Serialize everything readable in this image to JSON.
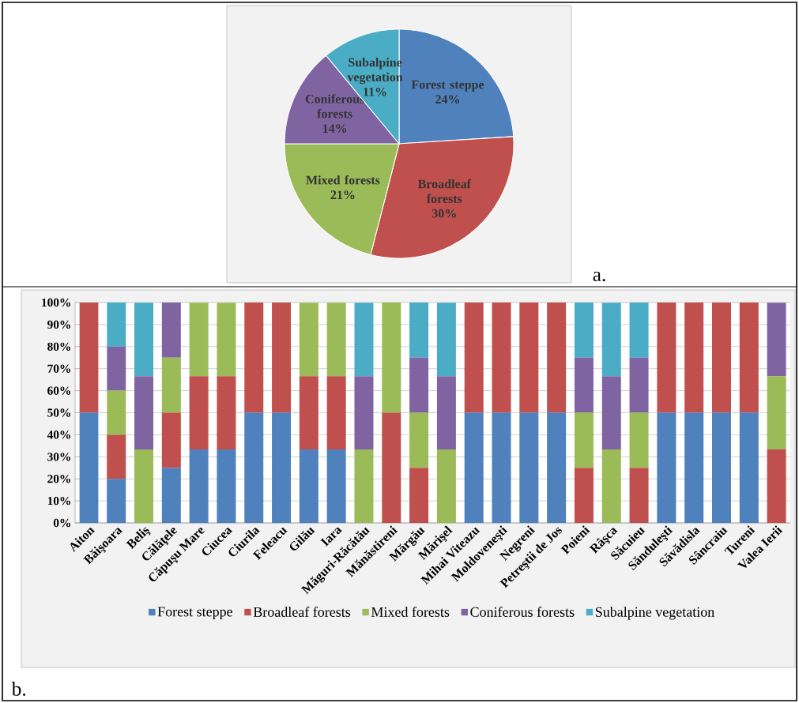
{
  "chart_data": [
    {
      "type": "pie",
      "categories": [
        "Forest steppe",
        "Broadleaf forests",
        "Mixed forests",
        "Coniferous forests",
        "Subalpine vegetation"
      ],
      "values": [
        24,
        30,
        21,
        14,
        11
      ],
      "colors": [
        "#4f81bd",
        "#c0504d",
        "#9bbb59",
        "#8064a2",
        "#4bacc6"
      ],
      "value_labels": [
        "24%",
        "30%",
        "21%",
        "14%",
        "11%"
      ],
      "annotations": [
        "a."
      ]
    },
    {
      "type": "bar",
      "stacked": true,
      "categories": [
        "Aiton",
        "Băişoara",
        "Beliş",
        "Călăţele",
        "Căpuşu Mare",
        "Ciucea",
        "Ciurila",
        "Feleacu",
        "Gilău",
        "Iara",
        "Măguri-Răcătău",
        "Mănăstireni",
        "Mărgău",
        "Mărişel",
        "Mihai Viteazu",
        "Moldoveneşti",
        "Negreni",
        "Petreştii de Jos",
        "Poieni",
        "Râşca",
        "Săcuieu",
        "Sănduleşti",
        "Săvădisla",
        "Sâncraiu",
        "Tureni",
        "Valea Ierii"
      ],
      "series": [
        {
          "name": "Forest steppe",
          "color": "#4f81bd",
          "values": [
            50,
            20,
            0,
            25,
            33.3,
            33.3,
            50,
            50,
            33.3,
            33.3,
            0,
            0,
            0,
            0,
            50,
            50,
            50,
            50,
            0,
            0,
            0,
            50,
            50,
            50,
            50,
            0
          ]
        },
        {
          "name": "Broadleaf forests",
          "color": "#c0504d",
          "values": [
            50,
            20,
            0,
            25,
            33.3,
            33.3,
            50,
            50,
            33.3,
            33.3,
            0,
            50,
            25,
            0,
            50,
            50,
            50,
            50,
            25,
            0,
            25,
            50,
            50,
            50,
            50,
            33.3
          ]
        },
        {
          "name": "Mixed forests",
          "color": "#9bbb59",
          "values": [
            0,
            20,
            33.3,
            25,
            33.3,
            33.3,
            0,
            0,
            33.3,
            33.3,
            33.3,
            50,
            25,
            33.3,
            0,
            0,
            0,
            0,
            25,
            33.3,
            25,
            0,
            0,
            0,
            0,
            33.3
          ]
        },
        {
          "name": "Coniferous forests",
          "color": "#8064a2",
          "values": [
            0,
            20,
            33.3,
            25,
            0,
            0,
            0,
            0,
            0,
            0,
            33.3,
            0,
            25,
            33.3,
            0,
            0,
            0,
            0,
            25,
            33.3,
            25,
            0,
            0,
            0,
            0,
            33.3
          ]
        },
        {
          "name": "Subalpine vegetation",
          "color": "#4bacc6",
          "values": [
            0,
            20,
            33.3,
            0,
            0,
            0,
            0,
            0,
            0,
            0,
            33.3,
            0,
            25,
            33.3,
            0,
            0,
            0,
            0,
            25,
            33.3,
            25,
            0,
            0,
            0,
            0,
            0
          ]
        }
      ],
      "ylim": [
        0,
        100
      ],
      "yticks": [
        {
          "value": 0,
          "label": "0%"
        },
        {
          "value": 10,
          "label": "10%"
        },
        {
          "value": 20,
          "label": "20%"
        },
        {
          "value": 30,
          "label": "30%"
        },
        {
          "value": 40,
          "label": "40%"
        },
        {
          "value": 50,
          "label": "50%"
        },
        {
          "value": 60,
          "label": "60%"
        },
        {
          "value": 70,
          "label": "70%"
        },
        {
          "value": 80,
          "label": "80%"
        },
        {
          "value": 90,
          "label": "90%"
        },
        {
          "value": 100,
          "label": "100%"
        }
      ],
      "grid": "y",
      "legend": "bottom",
      "annotations": [
        "b."
      ]
    }
  ]
}
